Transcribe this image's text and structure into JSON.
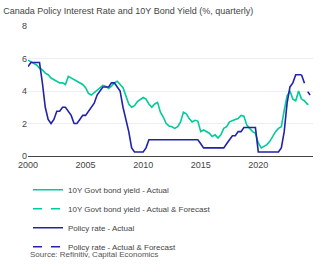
{
  "chart_data": {
    "type": "line",
    "title": "Canada Policy Interest Rate and 10Y Bond Yield (%, quarterly)",
    "source": "Source: Refinitiv, Capital Economics",
    "xlim": [
      2000,
      2024.75
    ],
    "xticks": [
      2000,
      2005,
      2010,
      2015,
      2020
    ],
    "ylim": [
      0,
      8
    ],
    "yticks": [
      0,
      2,
      4,
      6,
      8
    ],
    "grid": "y",
    "legend": "bottom",
    "series": [
      {
        "name": "10Y Govt bond yield - Actual",
        "color": "#00cc99",
        "line_style": "solid",
        "x": [
          2000.0,
          2000.25,
          2000.5,
          2000.75,
          2001.0,
          2001.25,
          2001.5,
          2001.75,
          2002.0,
          2002.25,
          2002.5,
          2002.75,
          2003.0,
          2003.25,
          2003.5,
          2003.75,
          2004.0,
          2004.25,
          2004.5,
          2004.75,
          2005.0,
          2005.25,
          2005.5,
          2005.75,
          2006.0,
          2006.25,
          2006.5,
          2006.75,
          2007.0,
          2007.25,
          2007.5,
          2007.75,
          2008.0,
          2008.25,
          2008.5,
          2008.75,
          2009.0,
          2009.25,
          2009.5,
          2009.75,
          2010.0,
          2010.25,
          2010.5,
          2010.75,
          2011.0,
          2011.25,
          2011.5,
          2011.75,
          2012.0,
          2012.25,
          2012.5,
          2012.75,
          2013.0,
          2013.25,
          2013.5,
          2013.75,
          2014.0,
          2014.25,
          2014.5,
          2014.75,
          2015.0,
          2015.25,
          2015.5,
          2015.75,
          2016.0,
          2016.25,
          2016.5,
          2016.75,
          2017.0,
          2017.25,
          2017.5,
          2017.75,
          2018.0,
          2018.25,
          2018.5,
          2018.75,
          2019.0,
          2019.25,
          2019.5,
          2019.75,
          2020.0,
          2020.25,
          2020.5,
          2020.75,
          2021.0,
          2021.25,
          2021.5,
          2021.75,
          2022.0,
          2022.25,
          2022.5,
          2022.75,
          2023.0,
          2023.25,
          2023.5,
          2023.75
        ],
        "values": [
          5.9,
          5.8,
          5.7,
          5.6,
          5.4,
          5.3,
          5.1,
          5.0,
          4.8,
          4.7,
          4.6,
          4.5,
          4.5,
          4.4,
          4.9,
          4.8,
          4.7,
          4.6,
          4.5,
          4.4,
          4.2,
          3.85,
          3.75,
          3.9,
          4.1,
          4.25,
          4.35,
          4.3,
          4.15,
          4.3,
          4.5,
          4.6,
          4.4,
          4.2,
          3.7,
          3.2,
          3.0,
          3.1,
          3.35,
          3.5,
          3.6,
          3.5,
          3.2,
          3.0,
          3.2,
          3.3,
          2.7,
          2.4,
          2.0,
          1.85,
          1.8,
          1.7,
          1.8,
          2.1,
          2.7,
          2.6,
          2.3,
          2.1,
          2.2,
          2.15,
          1.5,
          1.6,
          1.5,
          1.4,
          1.2,
          1.3,
          1.1,
          1.3,
          1.7,
          1.8,
          2.1,
          2.2,
          2.25,
          2.3,
          2.5,
          2.45,
          1.9,
          1.7,
          1.5,
          1.4,
          0.8,
          0.5,
          0.6,
          0.7,
          0.9,
          1.2,
          1.5,
          1.7,
          1.8,
          2.8,
          3.7,
          4.0,
          3.5,
          3.4,
          4.0,
          3.5
        ]
      },
      {
        "name": "10Y Govt bond yield - Actual & Forecast",
        "color": "#00cc99",
        "line_style": "dashed",
        "x": [
          2023.75,
          2024.0,
          2024.25,
          2024.5
        ],
        "values": [
          3.5,
          3.4,
          3.2,
          3.1
        ]
      },
      {
        "name": "Policy rate - Actual",
        "color": "#2222aa",
        "line_style": "solid",
        "x": [
          2000.0,
          2000.25,
          2000.5,
          2000.75,
          2001.0,
          2001.25,
          2001.5,
          2001.75,
          2002.0,
          2002.25,
          2002.5,
          2002.75,
          2003.0,
          2003.25,
          2003.5,
          2003.75,
          2004.0,
          2004.25,
          2004.5,
          2004.75,
          2005.0,
          2005.25,
          2005.5,
          2005.75,
          2006.0,
          2006.25,
          2006.5,
          2006.75,
          2007.0,
          2007.25,
          2007.5,
          2007.75,
          2008.0,
          2008.25,
          2008.5,
          2008.75,
          2009.0,
          2009.25,
          2009.5,
          2009.75,
          2010.0,
          2010.25,
          2010.5,
          2010.75,
          2011.0,
          2011.25,
          2011.5,
          2011.75,
          2012.0,
          2012.25,
          2012.5,
          2012.75,
          2013.0,
          2013.25,
          2013.5,
          2013.75,
          2014.0,
          2014.25,
          2014.5,
          2014.75,
          2015.0,
          2015.25,
          2015.5,
          2015.75,
          2016.0,
          2016.25,
          2016.5,
          2016.75,
          2017.0,
          2017.25,
          2017.5,
          2017.75,
          2018.0,
          2018.25,
          2018.5,
          2018.75,
          2019.0,
          2019.25,
          2019.5,
          2019.75,
          2020.0,
          2020.25,
          2020.5,
          2020.75,
          2021.0,
          2021.25,
          2021.5,
          2021.75,
          2022.0,
          2022.25,
          2022.5,
          2022.75,
          2023.0,
          2023.25,
          2023.5,
          2023.75
        ],
        "values": [
          5.5,
          5.75,
          5.75,
          5.75,
          5.75,
          4.5,
          3.0,
          2.25,
          2.0,
          2.25,
          2.75,
          2.75,
          3.0,
          3.0,
          2.75,
          2.5,
          2.0,
          2.0,
          2.25,
          2.5,
          2.5,
          2.75,
          3.0,
          3.25,
          3.75,
          4.0,
          4.25,
          4.25,
          4.25,
          4.5,
          4.5,
          4.25,
          4.0,
          3.0,
          2.25,
          1.5,
          0.5,
          0.25,
          0.25,
          0.25,
          0.25,
          0.5,
          1.0,
          1.0,
          1.0,
          1.0,
          1.0,
          1.0,
          1.0,
          1.0,
          1.0,
          1.0,
          1.0,
          1.0,
          1.0,
          1.0,
          1.0,
          1.0,
          1.0,
          1.0,
          0.75,
          0.5,
          0.5,
          0.5,
          0.5,
          0.5,
          0.5,
          0.5,
          0.5,
          0.75,
          1.0,
          1.25,
          1.25,
          1.5,
          1.5,
          1.75,
          1.75,
          1.75,
          1.75,
          1.75,
          0.25,
          0.25,
          0.25,
          0.25,
          0.25,
          0.25,
          0.25,
          0.25,
          0.5,
          1.5,
          3.25,
          4.25,
          4.5,
          5.0,
          5.0,
          5.0
        ]
      },
      {
        "name": "Policy rate - Actual & Forecast",
        "color": "#2222aa",
        "line_style": "dashed",
        "x": [
          2023.75,
          2024.0,
          2024.25,
          2024.5
        ],
        "values": [
          5.0,
          4.5,
          4.0,
          3.75
        ]
      }
    ]
  }
}
